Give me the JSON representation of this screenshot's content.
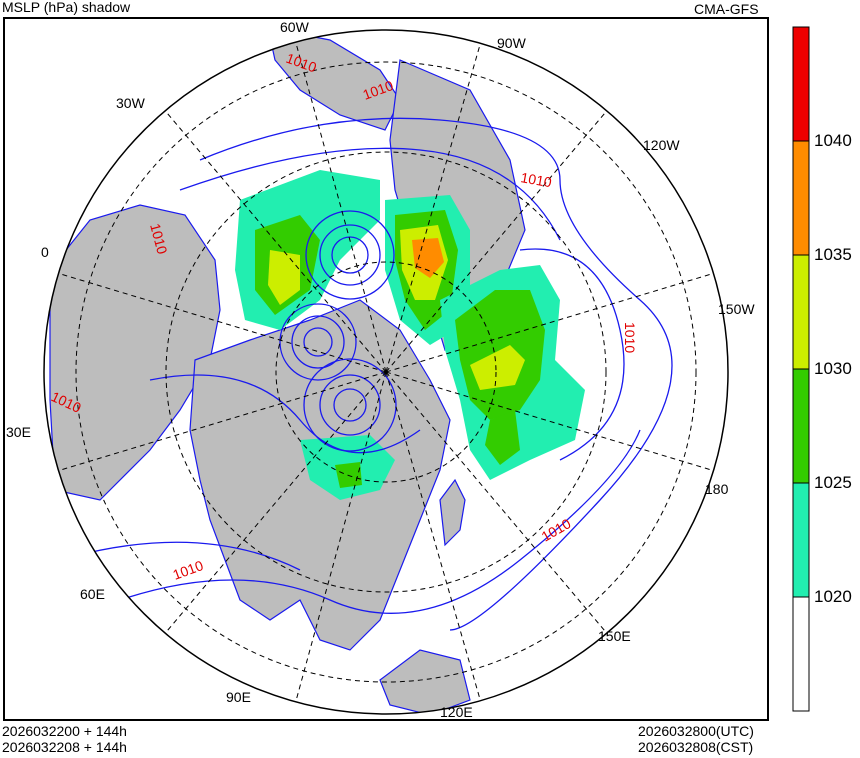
{
  "header": {
    "title": "MSLP (hPa) shadow",
    "model": "CMA-GFS"
  },
  "footer": {
    "init_utc": "2026032200 + 144h",
    "init_cst": "2026032208 + 144h",
    "valid_utc": "2026032800(UTC)",
    "valid_cst": "2026032808(CST)"
  },
  "longitude_labels": [
    "60W",
    "90W",
    "30W",
    "120W",
    "0",
    "150W",
    "30E",
    "180",
    "60E",
    "150E",
    "90E",
    "120E"
  ],
  "contour_labels": [
    "1010",
    "1010",
    "1010",
    "1010",
    "1010",
    "1010",
    "1010",
    "1010"
  ],
  "colorbar": {
    "ticks": [
      "1040",
      "1035",
      "1030",
      "1025",
      "1020"
    ],
    "colors": [
      "#ee0000",
      "#ff8c00",
      "#ccee00",
      "#33cc00",
      "#22eeb0",
      "#ffffff"
    ]
  },
  "colors": {
    "land": "#bdbdbd",
    "isobar": "#1a1aee",
    "isobar_label": "#e00000"
  }
}
